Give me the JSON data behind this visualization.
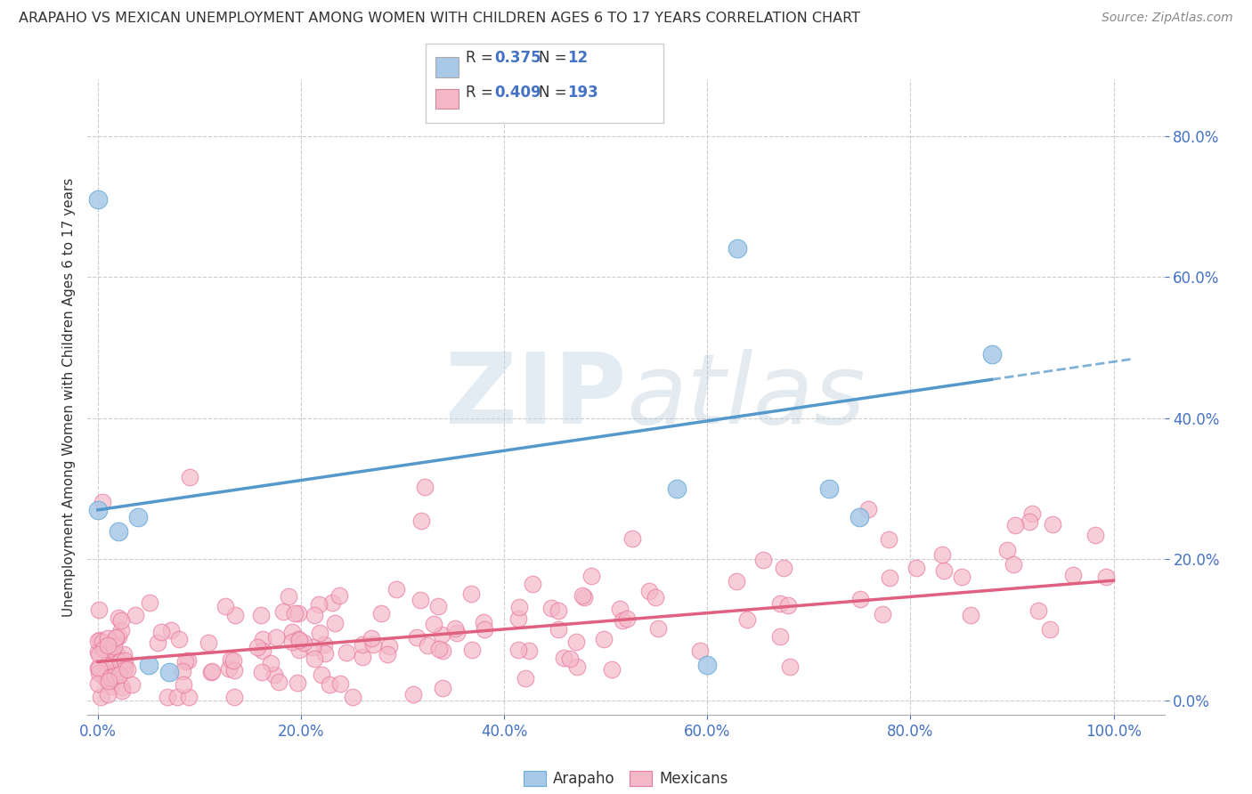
{
  "title": "ARAPAHO VS MEXICAN UNEMPLOYMENT AMONG WOMEN WITH CHILDREN AGES 6 TO 17 YEARS CORRELATION CHART",
  "source": "Source: ZipAtlas.com",
  "ylabel": "Unemployment Among Women with Children Ages 6 to 17 years",
  "legend_label_arapaho": "Arapaho",
  "legend_label_mexicans": "Mexicans",
  "arapaho_R": "0.375",
  "arapaho_N": "12",
  "mexicans_R": "0.409",
  "mexicans_N": "193",
  "arapaho_color": "#a8c8e8",
  "arapaho_edge_color": "#6aaed6",
  "mexicans_color": "#f4b8c8",
  "mexicans_edge_color": "#e878a0",
  "arapaho_line_color": "#5599cc",
  "mexicans_line_color": "#e06080",
  "watermark_color": "#c8d8e8",
  "background_color": "#ffffff",
  "grid_color": "#cccccc",
  "tick_color": "#4472c4",
  "title_color": "#333333",
  "source_color": "#888888",
  "xlim": [
    -0.01,
    1.05
  ],
  "ylim": [
    -0.02,
    0.88
  ],
  "xticks": [
    0.0,
    0.2,
    0.4,
    0.6,
    0.8,
    1.0
  ],
  "xtick_labels": [
    "0.0%",
    "20.0%",
    "40.0%",
    "60.0%",
    "80.0%",
    "100.0%"
  ],
  "yticks": [
    0.0,
    0.2,
    0.4,
    0.6,
    0.8
  ],
  "ytick_labels": [
    "0.0%",
    "20.0%",
    "40.0%",
    "60.0%",
    "80.0%"
  ],
  "arapaho_line_x_solid_end": 0.88,
  "arapaho_line_x_dash_start": 0.88,
  "arapaho_line_x_dash_end": 1.02,
  "arapaho_intercept": 0.27,
  "arapaho_slope": 0.21,
  "mexicans_intercept": 0.055,
  "mexicans_slope": 0.115,
  "arapaho_points_x": [
    0.0,
    0.0,
    0.02,
    0.04,
    0.05,
    0.07,
    0.57,
    0.6,
    0.63,
    0.72,
    0.75,
    0.88
  ],
  "arapaho_points_y": [
    0.71,
    0.27,
    0.24,
    0.26,
    0.05,
    0.04,
    0.3,
    0.05,
    0.64,
    0.3,
    0.26,
    0.49
  ]
}
